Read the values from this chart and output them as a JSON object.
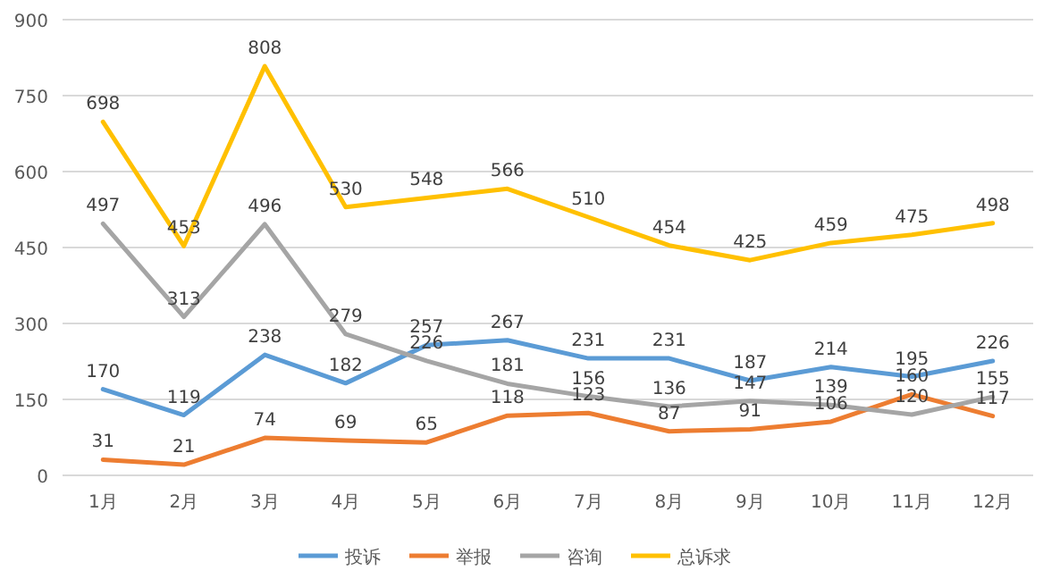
{
  "chart_data": {
    "type": "line",
    "categories": [
      "1月",
      "2月",
      "3月",
      "4月",
      "5月",
      "6月",
      "7月",
      "8月",
      "9月",
      "10月",
      "11月",
      "12月"
    ],
    "series": [
      {
        "name": "投诉",
        "color": "#5b9bd5",
        "values": [
          170,
          119,
          238,
          182,
          257,
          267,
          231,
          231,
          187,
          214,
          195,
          226
        ]
      },
      {
        "name": "举报",
        "color": "#ed7d31",
        "values": [
          31,
          21,
          74,
          69,
          65,
          118,
          123,
          87,
          91,
          106,
          160,
          117
        ]
      },
      {
        "name": "咨询",
        "color": "#a5a5a5",
        "values": [
          497,
          313,
          496,
          279,
          226,
          181,
          156,
          136,
          147,
          139,
          120,
          155
        ]
      },
      {
        "name": "总诉求",
        "color": "#ffc000",
        "values": [
          698,
          453,
          808,
          530,
          548,
          566,
          510,
          454,
          425,
          459,
          475,
          498
        ]
      }
    ],
    "ylim": [
      0,
      900
    ],
    "yticks": [
      0,
      150,
      300,
      450,
      600,
      750,
      900
    ],
    "grid": "y",
    "legend": "bottom",
    "data_labels": true
  }
}
